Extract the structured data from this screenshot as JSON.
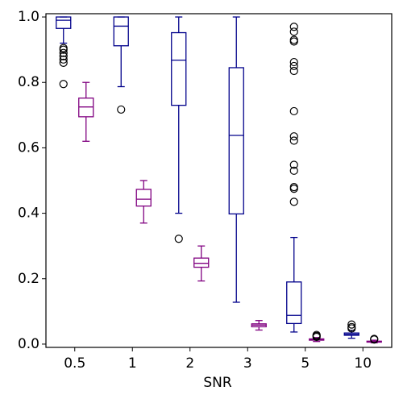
{
  "chart_data": {
    "type": "box",
    "xlabel": "SNR",
    "categories": [
      "0.5",
      "1",
      "2",
      "3",
      "5",
      "10"
    ],
    "ylim": [
      -0.01,
      1.01
    ],
    "yticks": [
      {
        "value": 0,
        "label": "0.0"
      },
      0.2,
      0.4,
      0.6,
      0.8,
      {
        "value": 1,
        "label": "1.0"
      }
    ],
    "series": [
      {
        "color": "#00008b",
        "boxes": [
          {
            "whislo": 0.92,
            "q1": 0.965,
            "med": 0.99,
            "q3": 1.0,
            "whishi": 1.0,
            "fliers": [
              0.905,
              0.9,
              0.89,
              0.88,
              0.87,
              0.86,
              0.795
            ]
          },
          {
            "whislo": 0.787,
            "q1": 0.912,
            "med": 0.972,
            "q3": 1.0,
            "whishi": 1.0,
            "fliers": [
              0.717
            ]
          },
          {
            "whislo": 0.4,
            "q1": 0.73,
            "med": 0.868,
            "q3": 0.952,
            "whishi": 1.0,
            "fliers": [
              0.322
            ]
          },
          {
            "whislo": 0.128,
            "q1": 0.398,
            "med": 0.638,
            "q3": 0.845,
            "whishi": 1.0,
            "fliers": []
          },
          {
            "whislo": 0.037,
            "q1": 0.063,
            "med": 0.088,
            "q3": 0.19,
            "whishi": 0.326,
            "fliers": [
              0.97,
              0.955,
              0.93,
              0.925,
              0.862,
              0.85,
              0.835,
              0.712,
              0.635,
              0.622,
              0.548,
              0.53,
              0.48,
              0.475,
              0.435
            ]
          },
          {
            "whislo": 0.018,
            "q1": 0.027,
            "med": 0.03,
            "q3": 0.034,
            "whishi": 0.042,
            "fliers": [
              0.048,
              0.052,
              0.06
            ]
          }
        ]
      },
      {
        "color": "#800080",
        "boxes": [
          {
            "whislo": 0.62,
            "q1": 0.695,
            "med": 0.725,
            "q3": 0.752,
            "whishi": 0.8,
            "fliers": []
          },
          {
            "whislo": 0.37,
            "q1": 0.422,
            "med": 0.443,
            "q3": 0.473,
            "whishi": 0.5,
            "fliers": []
          },
          {
            "whislo": 0.193,
            "q1": 0.235,
            "med": 0.247,
            "q3": 0.263,
            "whishi": 0.3,
            "fliers": []
          },
          {
            "whislo": 0.043,
            "q1": 0.053,
            "med": 0.058,
            "q3": 0.062,
            "whishi": 0.072,
            "fliers": []
          },
          {
            "whislo": 0.008,
            "q1": 0.012,
            "med": 0.014,
            "q3": 0.016,
            "whishi": 0.02,
            "fliers": [
              0.022,
              0.025,
              0.028
            ]
          },
          {
            "whislo": 0.004,
            "q1": 0.006,
            "med": 0.008,
            "q3": 0.009,
            "whishi": 0.012,
            "fliers": [
              0.014,
              0.016
            ]
          }
        ]
      }
    ]
  }
}
